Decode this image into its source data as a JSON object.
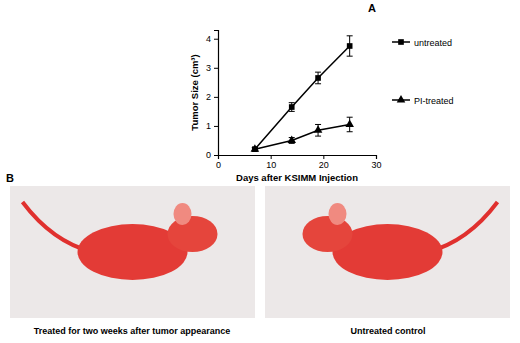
{
  "chart_data": {
    "type": "line",
    "x_label": "Days after KSIMM Injection",
    "y_label": "Tumor Size (cm³)",
    "x": [
      7,
      14,
      19,
      25
    ],
    "series": [
      {
        "name": "untreated",
        "color": "#000000",
        "marker": "square",
        "line_style": "solid",
        "values": [
          0.2,
          1.65,
          2.65,
          3.75
        ],
        "errors": [
          0.05,
          0.15,
          0.2,
          0.35
        ]
      },
      {
        "name": "PI-treated",
        "color": "#000000",
        "marker": "triangle",
        "line_style": "solid",
        "values": [
          0.2,
          0.5,
          0.85,
          1.05
        ],
        "errors": [
          0.05,
          0.1,
          0.2,
          0.25
        ]
      }
    ],
    "xlim": [
      0,
      30
    ],
    "xticks": [
      0,
      10,
      20,
      30
    ],
    "ylim": [
      0,
      4.3
    ],
    "yticks": [
      0,
      1,
      2,
      3,
      4
    ],
    "grid": false,
    "legend": "right",
    "annotations": [
      "A",
      "B",
      "Treated for two weeks after tumor appearance",
      "Untreated control"
    ]
  }
}
